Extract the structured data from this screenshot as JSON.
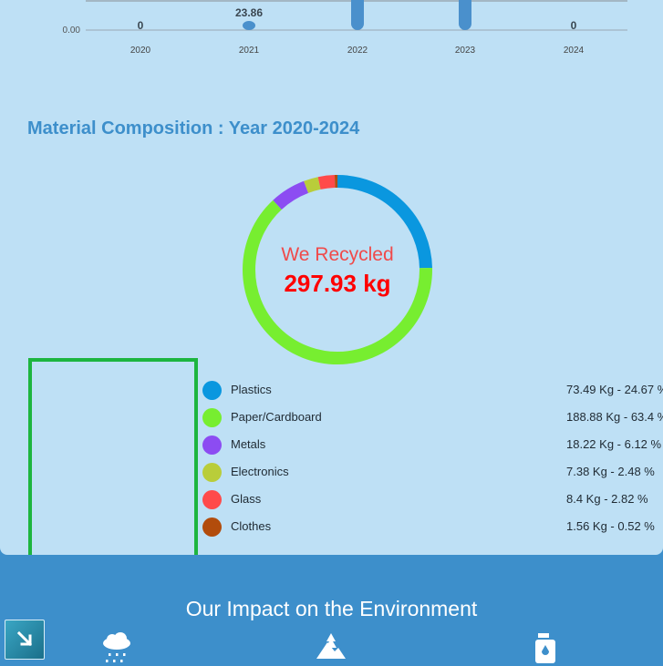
{
  "yearly_chart": {
    "y_ticks": [
      "0.00"
    ],
    "years": [
      "2020",
      "2021",
      "2022",
      "2023",
      "2024"
    ],
    "labels": [
      "0",
      "23.86",
      "",
      "",
      "0"
    ],
    "color": "#4a90cc"
  },
  "composition": {
    "title": "Material Composition : Year 2020-2024",
    "center_label": "We Recycled",
    "total": "297.93 kg",
    "items": [
      {
        "name": "Plastics",
        "value": "73.49 Kg - 24.67 %",
        "pct": 24.67,
        "color": "#0a97df"
      },
      {
        "name": "Paper/Cardboard",
        "value": "188.88 Kg - 63.4 %",
        "pct": 63.4,
        "color": "#77ee30"
      },
      {
        "name": "Metals",
        "value": "18.22 Kg - 6.12 %",
        "pct": 6.12,
        "color": "#8c4cf2"
      },
      {
        "name": "Electronics",
        "value": "7.38 Kg - 2.48 %",
        "pct": 2.48,
        "color": "#b9cd3a"
      },
      {
        "name": "Glass",
        "value": "8.4 Kg - 2.82 %",
        "pct": 2.82,
        "color": "#ff4a4a"
      },
      {
        "name": "Clothes",
        "value": "1.56 Kg - 0.52 %",
        "pct": 0.52,
        "color": "#b24c0c"
      }
    ]
  },
  "impact": {
    "title": "Our Impact on the Environment",
    "icons": [
      "cloud-rain-icon",
      "mountain-tree-icon",
      "oil-bottle-icon"
    ]
  }
}
